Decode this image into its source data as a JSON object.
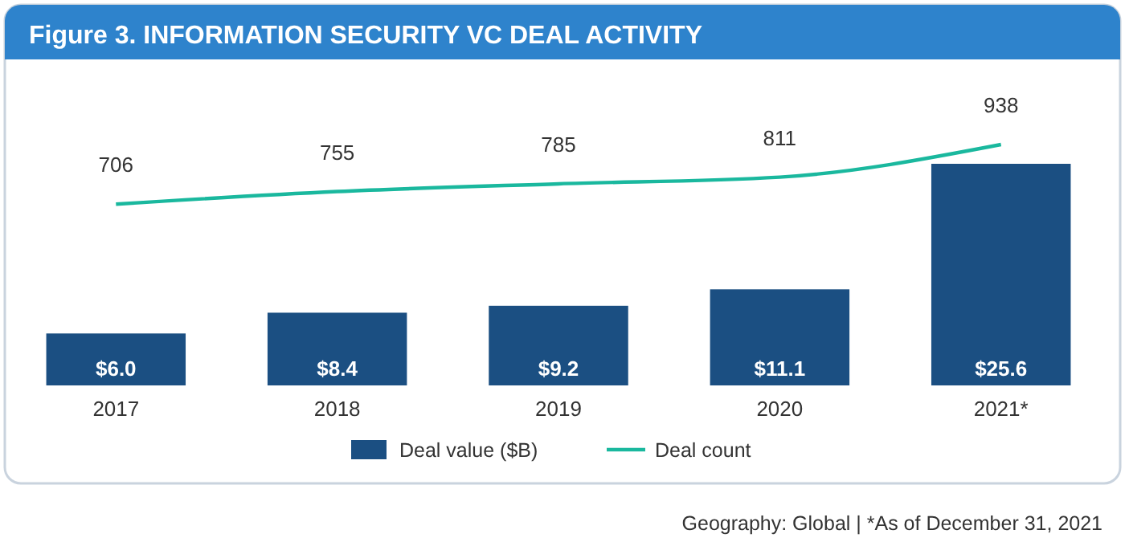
{
  "chart_data": {
    "type": "bar",
    "title": "Figure 3. INFORMATION SECURITY VC DEAL ACTIVITY",
    "categories": [
      "2017",
      "2018",
      "2019",
      "2020",
      "2021*"
    ],
    "series": [
      {
        "name": "Deal value ($B)",
        "color": "#1b4f82",
        "values": [
          6.0,
          8.4,
          9.2,
          11.1,
          25.6
        ],
        "value_labels": [
          "$6.0",
          "$8.4",
          "$9.2",
          "$11.1",
          "$25.6"
        ]
      },
      {
        "name": "Deal count",
        "type": "line",
        "axis": "y2",
        "color": "#1ab89e",
        "values": [
          706,
          755,
          785,
          811,
          938
        ],
        "value_labels": [
          "706",
          "755",
          "785",
          "811",
          "938"
        ]
      }
    ],
    "legend": "bottom",
    "annotations": [
      "Geography: Global  |  *As of December 31, 2021"
    ]
  }
}
